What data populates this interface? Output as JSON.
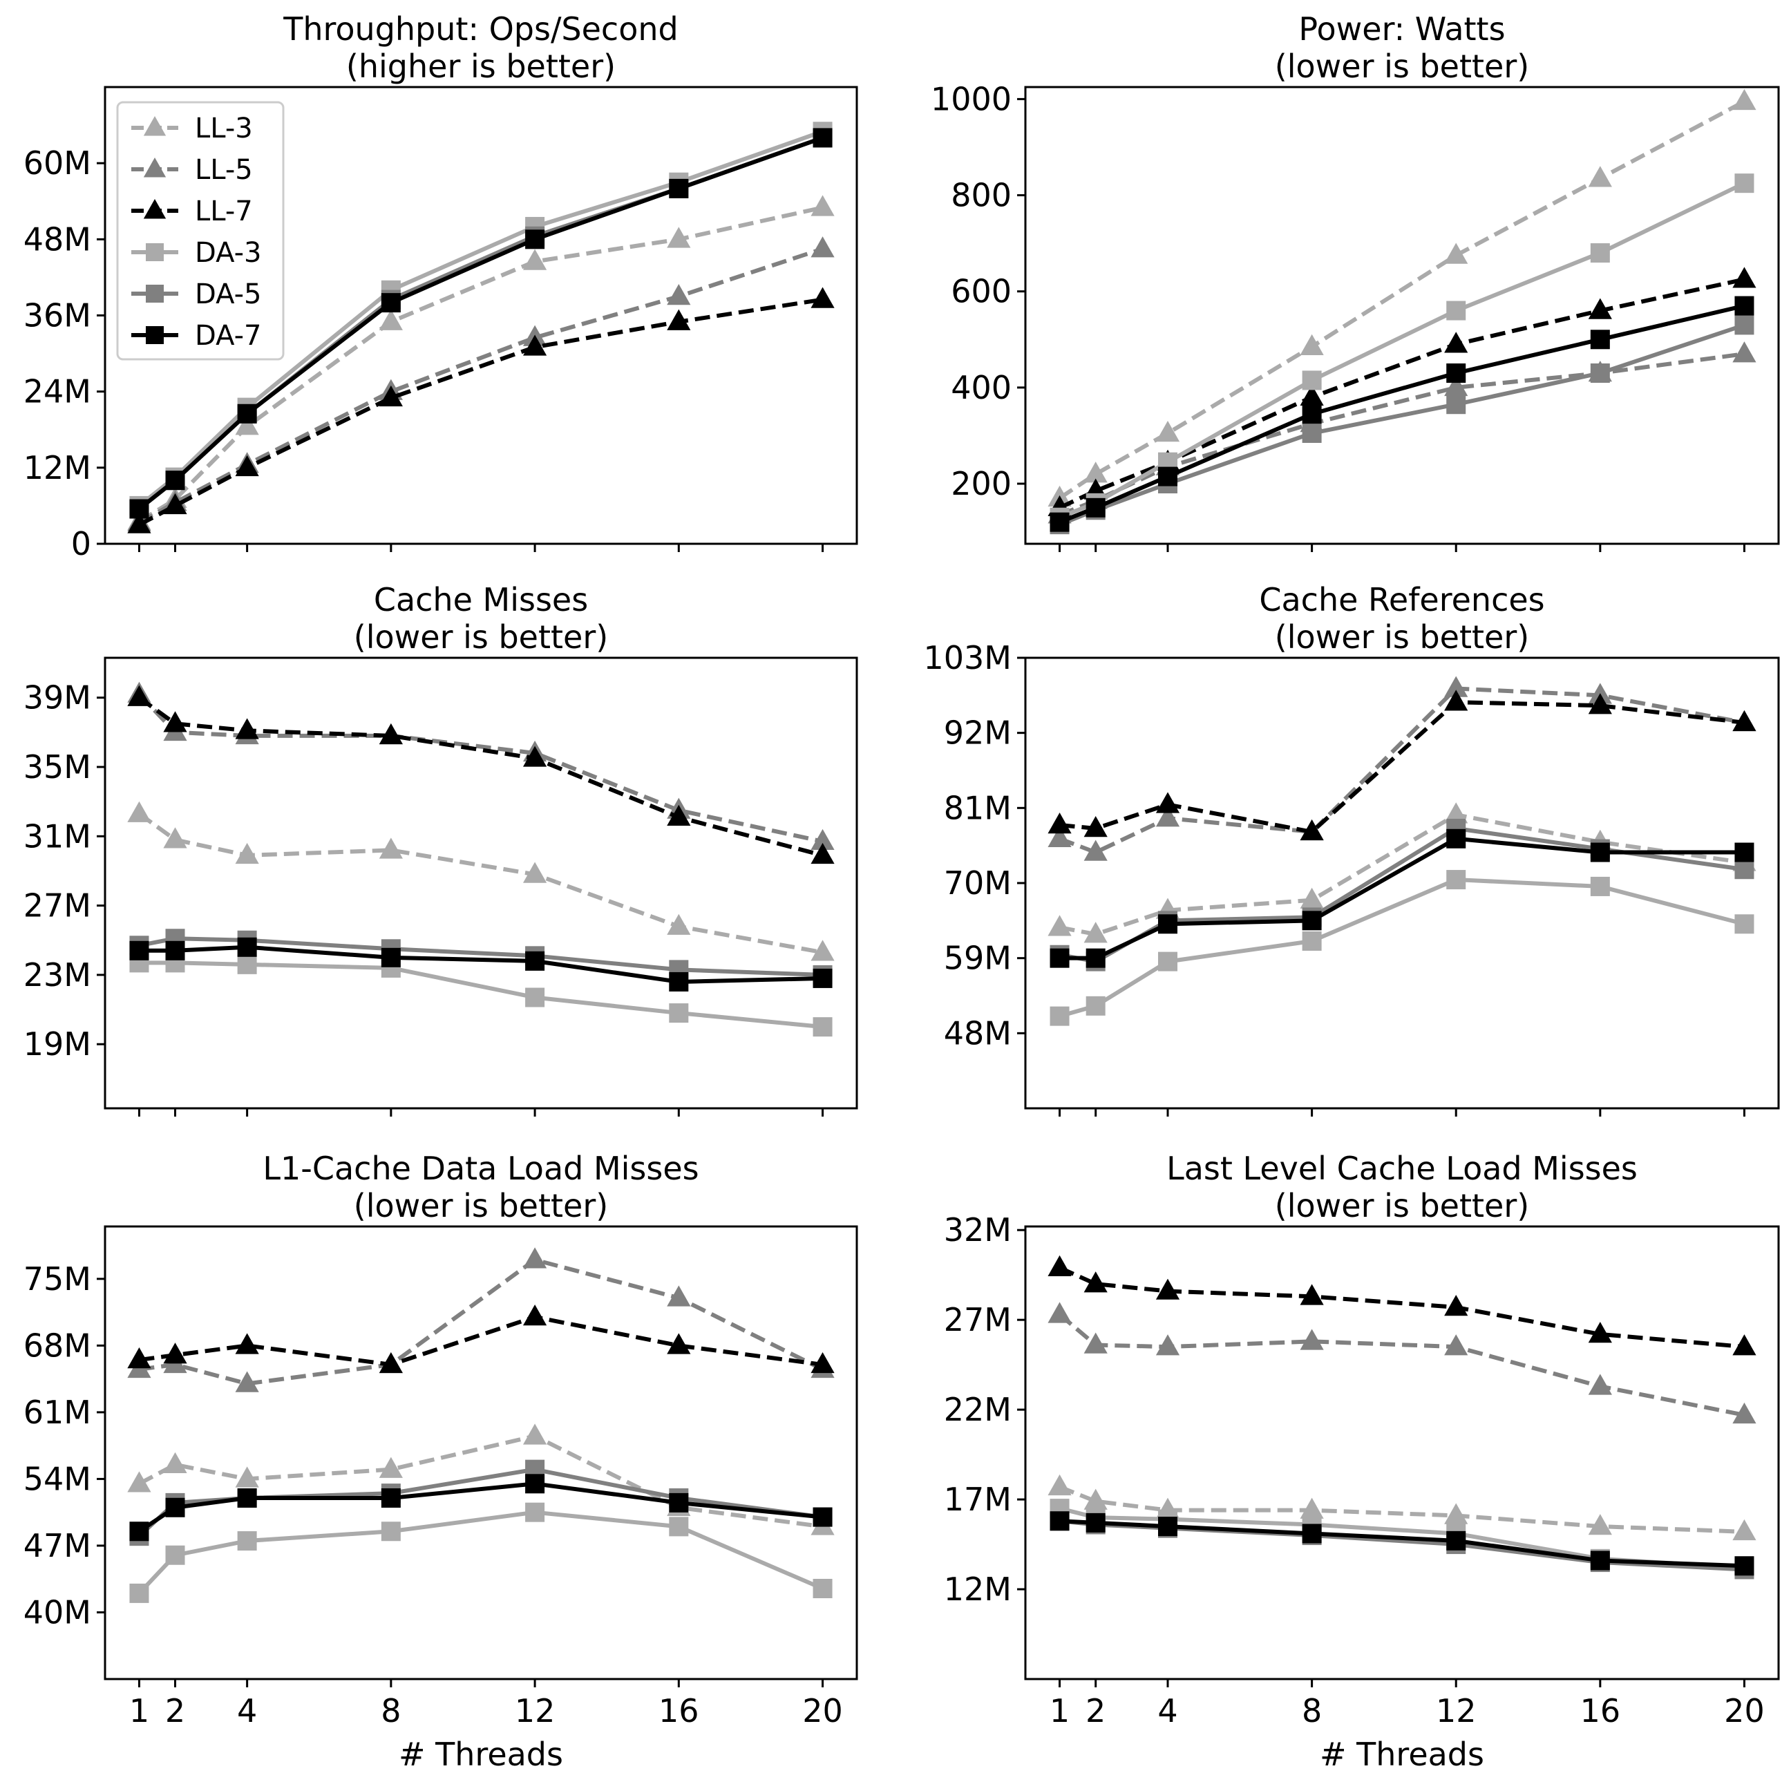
{
  "chart_data": [
    {
      "type": "line",
      "title": "Throughput: Ops/Second",
      "subtitle": "(higher is better)",
      "xlabel": "",
      "ylabel": "",
      "x": [
        1,
        2,
        4,
        8,
        12,
        16,
        20
      ],
      "xticks": [
        "1",
        "2",
        "4",
        "8",
        "12",
        "16",
        "20"
      ],
      "yticks": [
        0,
        12,
        24,
        36,
        48,
        60
      ],
      "ytick_labels": [
        "0",
        "12M",
        "24M",
        "36M",
        "48M",
        "60M"
      ],
      "ylim": [
        0,
        72
      ],
      "legend": "top-left",
      "series": [
        {
          "name": "LL-3",
          "values": [
            3.5,
            7.0,
            18.5,
            35.0,
            44.5,
            48.0,
            53.0
          ]
        },
        {
          "name": "LL-5",
          "values": [
            3.3,
            6.5,
            12.5,
            24.0,
            32.5,
            39.0,
            46.5
          ]
        },
        {
          "name": "LL-7",
          "values": [
            3.0,
            6.0,
            12.0,
            23.0,
            31.0,
            35.0,
            38.5
          ]
        },
        {
          "name": "DA-3",
          "values": [
            6.0,
            10.5,
            21.5,
            40.0,
            50.0,
            57.0,
            65.0
          ]
        },
        {
          "name": "DA-5",
          "values": [
            5.5,
            10.0,
            20.5,
            38.5,
            48.5,
            56.0,
            64.0
          ]
        },
        {
          "name": "DA-7",
          "values": [
            5.5,
            10.0,
            20.5,
            38.0,
            48.0,
            56.0,
            64.0
          ]
        }
      ]
    },
    {
      "type": "line",
      "title": "Power: Watts",
      "subtitle": "(lower is better)",
      "xlabel": "",
      "ylabel": "",
      "x": [
        1,
        2,
        4,
        8,
        12,
        16,
        20
      ],
      "xticks": [
        "1",
        "2",
        "4",
        "8",
        "12",
        "16",
        "20"
      ],
      "yticks": [
        200,
        400,
        600,
        800,
        1000
      ],
      "ytick_labels": [
        "200",
        "400",
        "600",
        "800",
        "1000"
      ],
      "ylim": [
        75,
        1025
      ],
      "legend": "none",
      "series": [
        {
          "name": "LL-3",
          "values": [
            170,
            220,
            305,
            485,
            675,
            835,
            995
          ]
        },
        {
          "name": "LL-5",
          "values": [
            135,
            165,
            235,
            325,
            400,
            430,
            470
          ]
        },
        {
          "name": "LL-7",
          "values": [
            150,
            185,
            245,
            380,
            490,
            560,
            625
          ]
        },
        {
          "name": "DA-3",
          "values": [
            130,
            160,
            245,
            415,
            560,
            680,
            825
          ]
        },
        {
          "name": "DA-5",
          "values": [
            115,
            145,
            200,
            305,
            365,
            430,
            530
          ]
        },
        {
          "name": "DA-7",
          "values": [
            120,
            150,
            215,
            345,
            430,
            500,
            570
          ]
        }
      ]
    },
    {
      "type": "line",
      "title": "Cache Misses",
      "subtitle": "(lower is better)",
      "xlabel": "",
      "ylabel": "",
      "x": [
        1,
        2,
        4,
        8,
        12,
        16,
        20
      ],
      "xticks": [
        "1",
        "2",
        "4",
        "8",
        "12",
        "16",
        "20"
      ],
      "yticks": [
        19,
        23,
        27,
        31,
        35,
        39
      ],
      "ytick_labels": [
        "19M",
        "23M",
        "27M",
        "31M",
        "35M",
        "39M"
      ],
      "ylim": [
        15.3,
        41.3
      ],
      "legend": "none",
      "series": [
        {
          "name": "LL-3",
          "values": [
            32.3,
            30.8,
            29.9,
            30.2,
            28.8,
            25.8,
            24.3
          ]
        },
        {
          "name": "LL-5",
          "values": [
            39.2,
            37.0,
            36.8,
            36.8,
            35.8,
            32.5,
            30.7
          ]
        },
        {
          "name": "LL-7",
          "values": [
            39.0,
            37.5,
            37.1,
            36.8,
            35.5,
            32.1,
            29.9
          ]
        },
        {
          "name": "DA-3",
          "values": [
            23.7,
            23.7,
            23.6,
            23.4,
            21.7,
            20.8,
            20.0
          ]
        },
        {
          "name": "DA-5",
          "values": [
            24.7,
            25.1,
            25.0,
            24.5,
            24.1,
            23.3,
            23.0
          ]
        },
        {
          "name": "DA-7",
          "values": [
            24.4,
            24.4,
            24.6,
            24.0,
            23.8,
            22.6,
            22.8
          ]
        }
      ]
    },
    {
      "type": "line",
      "title": "Cache References",
      "subtitle": "(lower is better)",
      "xlabel": "",
      "ylabel": "",
      "x": [
        1,
        2,
        4,
        8,
        12,
        16,
        20
      ],
      "xticks": [
        "1",
        "2",
        "4",
        "8",
        "12",
        "16",
        "20"
      ],
      "yticks": [
        48,
        59,
        70,
        81,
        92,
        103
      ],
      "ytick_labels": [
        "48M",
        "59M",
        "70M",
        "81M",
        "92M",
        "103M"
      ],
      "ylim": [
        37,
        103
      ],
      "legend": "none",
      "series": [
        {
          "name": "LL-3",
          "values": [
            63.5,
            62.5,
            66.0,
            67.5,
            80.0,
            76.0,
            73.0
          ]
        },
        {
          "name": "LL-5",
          "values": [
            76.5,
            74.5,
            79.5,
            77.5,
            98.5,
            97.5,
            93.5
          ]
        },
        {
          "name": "LL-7",
          "values": [
            78.5,
            78.0,
            81.5,
            77.5,
            96.5,
            96.0,
            93.5
          ]
        },
        {
          "name": "DA-3",
          "values": [
            50.5,
            52.0,
            58.5,
            61.5,
            70.5,
            69.5,
            64.0
          ]
        },
        {
          "name": "DA-5",
          "values": [
            59.5,
            58.5,
            64.5,
            65.0,
            78.0,
            75.0,
            72.0
          ]
        },
        {
          "name": "DA-7",
          "values": [
            59.0,
            59.0,
            64.0,
            64.5,
            76.5,
            74.5,
            74.5
          ]
        }
      ]
    },
    {
      "type": "line",
      "title": "L1-Cache Data Load Misses",
      "subtitle": "(lower is better)",
      "xlabel": "# Threads",
      "ylabel": "",
      "x": [
        1,
        2,
        4,
        8,
        12,
        16,
        20
      ],
      "xticks": [
        "1",
        "2",
        "4",
        "8",
        "12",
        "16",
        "20"
      ],
      "yticks": [
        40,
        47,
        54,
        61,
        68,
        75
      ],
      "ytick_labels": [
        "40M",
        "47M",
        "54M",
        "61M",
        "68M",
        "75M"
      ],
      "ylim": [
        33,
        80.5
      ],
      "legend": "none",
      "series": [
        {
          "name": "LL-3",
          "values": [
            53.5,
            55.5,
            54.0,
            55.0,
            58.5,
            51.0,
            49.0
          ]
        },
        {
          "name": "LL-5",
          "values": [
            65.5,
            66.0,
            64.0,
            66.0,
            77.0,
            73.0,
            65.5
          ]
        },
        {
          "name": "LL-7",
          "values": [
            66.5,
            67.0,
            68.0,
            66.0,
            71.0,
            68.0,
            66.0
          ]
        },
        {
          "name": "DA-3",
          "values": [
            42.0,
            46.0,
            47.5,
            48.5,
            50.5,
            49.0,
            42.5
          ]
        },
        {
          "name": "DA-5",
          "values": [
            48.0,
            51.5,
            52.0,
            52.5,
            55.0,
            52.0,
            50.0
          ]
        },
        {
          "name": "DA-7",
          "values": [
            48.5,
            51.0,
            52.0,
            52.0,
            53.5,
            51.5,
            50.0
          ]
        }
      ]
    },
    {
      "type": "line",
      "title": "Last Level Cache Load Misses",
      "subtitle": "(lower is better)",
      "xlabel": "# Threads",
      "ylabel": "",
      "x": [
        1,
        2,
        4,
        8,
        12,
        16,
        20
      ],
      "xticks": [
        "1",
        "2",
        "4",
        "8",
        "12",
        "16",
        "20"
      ],
      "yticks": [
        12,
        17,
        22,
        27,
        32
      ],
      "ytick_labels": [
        "12M",
        "17M",
        "22M",
        "27M",
        "32M"
      ],
      "ylim": [
        7,
        32.2
      ],
      "legend": "none",
      "series": [
        {
          "name": "LL-3",
          "values": [
            17.7,
            16.9,
            16.4,
            16.4,
            16.1,
            15.5,
            15.2
          ]
        },
        {
          "name": "LL-5",
          "values": [
            27.3,
            25.6,
            25.5,
            25.8,
            25.5,
            23.3,
            21.7
          ]
        },
        {
          "name": "LL-7",
          "values": [
            29.9,
            29.0,
            28.6,
            28.3,
            27.7,
            26.2,
            25.5
          ]
        },
        {
          "name": "DA-3",
          "values": [
            16.5,
            16.0,
            15.9,
            15.6,
            15.1,
            13.7,
            13.2
          ]
        },
        {
          "name": "DA-5",
          "values": [
            15.8,
            15.6,
            15.4,
            15.0,
            14.5,
            13.5,
            13.1
          ]
        },
        {
          "name": "DA-7",
          "values": [
            15.8,
            15.7,
            15.5,
            15.1,
            14.7,
            13.6,
            13.3
          ]
        }
      ]
    }
  ],
  "series_styles": {
    "LL-3": {
      "color": "#aaaaaa",
      "marker": "triangle",
      "dashed": true
    },
    "LL-5": {
      "color": "#808080",
      "marker": "triangle",
      "dashed": true
    },
    "LL-7": {
      "color": "#000000",
      "marker": "triangle",
      "dashed": true
    },
    "DA-3": {
      "color": "#aaaaaa",
      "marker": "square",
      "dashed": false
    },
    "DA-5": {
      "color": "#808080",
      "marker": "square",
      "dashed": false
    },
    "DA-7": {
      "color": "#000000",
      "marker": "square",
      "dashed": false
    }
  },
  "draw_order": [
    "LL-3",
    "LL-5",
    "LL-7",
    "DA-3",
    "DA-5",
    "DA-7"
  ]
}
